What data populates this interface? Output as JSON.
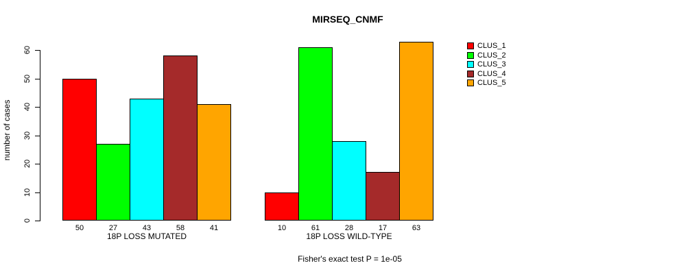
{
  "chart_data": {
    "type": "bar",
    "title": "MIRSEQ_CNMF",
    "ylabel": "number of cases",
    "ylim": [
      0,
      60
    ],
    "yticks": [
      0,
      10,
      20,
      30,
      40,
      50,
      60
    ],
    "grid": false,
    "legend_position": "right",
    "legend": [
      {
        "name": "CLUS_1",
        "color": "#FF0000"
      },
      {
        "name": "CLUS_2",
        "color": "#00FF00"
      },
      {
        "name": "CLUS_3",
        "color": "#00FFFF"
      },
      {
        "name": "CLUS_4",
        "color": "#A52A2A"
      },
      {
        "name": "CLUS_5",
        "color": "#FFA500"
      }
    ],
    "categories": [
      "18P LOSS MUTATED",
      "18P LOSS WILD-TYPE"
    ],
    "series": [
      {
        "name": "CLUS_1",
        "values": [
          50,
          10
        ]
      },
      {
        "name": "CLUS_2",
        "values": [
          27,
          61
        ]
      },
      {
        "name": "CLUS_3",
        "values": [
          43,
          28
        ]
      },
      {
        "name": "CLUS_4",
        "values": [
          58,
          17
        ]
      },
      {
        "name": "CLUS_5",
        "values": [
          41,
          63
        ]
      }
    ],
    "groups": [
      {
        "label": "18P LOSS MUTATED",
        "values": [
          50,
          27,
          43,
          58,
          41
        ]
      },
      {
        "label": "18P LOSS WILD-TYPE",
        "values": [
          10,
          61,
          28,
          17,
          63
        ]
      }
    ],
    "bar_value_labels": [
      [
        50,
        27,
        43,
        58,
        41
      ],
      [
        10,
        61,
        28,
        17,
        63
      ]
    ],
    "caption": "Fisher's exact test P = 1e-05",
    "bar_border_color": "#000000"
  }
}
